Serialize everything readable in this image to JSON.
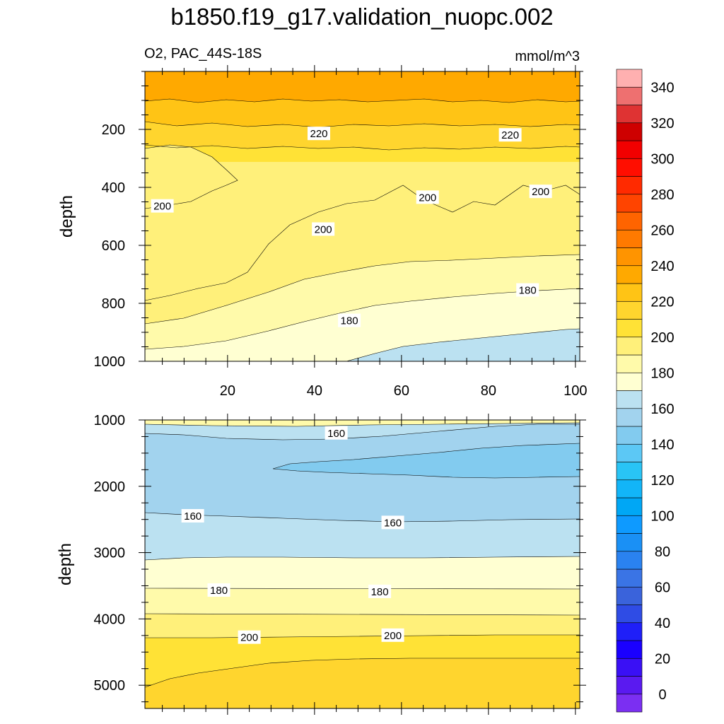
{
  "title": "b1850.f19_g17.validation_nuopc.002",
  "chart_data": {
    "type": "contour",
    "variable": "O2",
    "region": "PAC_44S-18S",
    "left_label": "O2, PAC_44S-18S",
    "units": "mmol/m^3",
    "xlabel": "",
    "ylabel": "depth",
    "colorbar": {
      "levels": [
        0,
        10,
        20,
        30,
        40,
        50,
        60,
        70,
        80,
        90,
        100,
        110,
        120,
        130,
        140,
        150,
        160,
        170,
        180,
        190,
        200,
        210,
        220,
        230,
        240,
        250,
        260,
        270,
        280,
        290,
        300,
        310,
        320,
        330,
        340,
        350
      ],
      "tick_labels": [
        "0",
        "20",
        "40",
        "60",
        "80",
        "100",
        "120",
        "140",
        "160",
        "180",
        "200",
        "220",
        "240",
        "260",
        "280",
        "300",
        "320",
        "340"
      ],
      "colors": [
        "#7B2FF2",
        "#5A1AF0",
        "#3A10F5",
        "#1A00FF",
        "#1F1FF8",
        "#2F4CE5",
        "#3A63DB",
        "#3A74E5",
        "#2A82F0",
        "#1A90F5",
        "#0E9AFF",
        "#00A7F5",
        "#12B5F8",
        "#29C4F5",
        "#5CC8F5",
        "#82CBEF",
        "#A2D3EE",
        "#BBE1F1",
        "#FFFFD2",
        "#FFFAAA",
        "#FFF07A",
        "#FFE236",
        "#FFD52E",
        "#FFC415",
        "#FFA900",
        "#FF9400",
        "#FF7A00",
        "#FF6400",
        "#FF4400",
        "#FF2A00",
        "#FF0E00",
        "#F20000",
        "#CE0000",
        "#DF3333",
        "#EE7070",
        "#FFB0B0"
      ]
    },
    "panels": [
      {
        "name": "upper",
        "ylim": [
          1000,
          0
        ],
        "xlim": [
          1,
          101
        ],
        "xticks": [
          20,
          40,
          60,
          80,
          100
        ],
        "yticks": [
          200,
          400,
          600,
          800,
          1000
        ],
        "contour_labels": [
          {
            "text": "220",
            "x": 41,
            "y": 215
          },
          {
            "text": "220",
            "x": 85,
            "y": 220
          },
          {
            "text": "200",
            "x": 5,
            "y": 465
          },
          {
            "text": "200",
            "x": 42,
            "y": 545
          },
          {
            "text": "200",
            "x": 66,
            "y": 435
          },
          {
            "text": "200",
            "x": 92,
            "y": 415
          },
          {
            "text": "180",
            "x": 48,
            "y": 860
          },
          {
            "text": "180",
            "x": 89,
            "y": 755
          }
        ]
      },
      {
        "name": "lower",
        "ylim": [
          5350,
          1000
        ],
        "xlim": [
          1,
          101
        ],
        "xticks": [
          20,
          40,
          60,
          80,
          100
        ],
        "yticks": [
          1000,
          2000,
          3000,
          4000,
          5000
        ],
        "contour_labels": [
          {
            "text": "160",
            "x": 45,
            "y": 1200
          },
          {
            "text": "160",
            "x": 12,
            "y": 2450
          },
          {
            "text": "160",
            "x": 58,
            "y": 2550
          },
          {
            "text": "180",
            "x": 18,
            "y": 3570
          },
          {
            "text": "180",
            "x": 55,
            "y": 3590
          },
          {
            "text": "200",
            "x": 25,
            "y": 4280
          },
          {
            "text": "200",
            "x": 58,
            "y": 4250
          }
        ]
      }
    ]
  }
}
